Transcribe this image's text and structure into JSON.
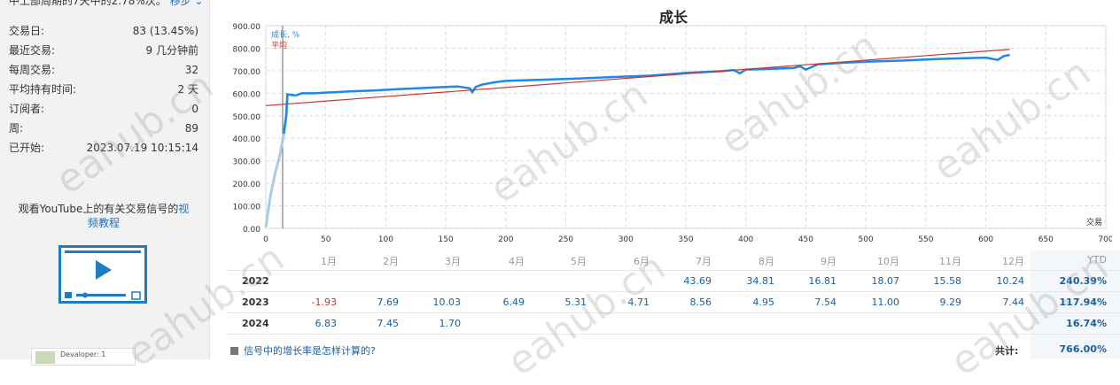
{
  "top_line": {
    "text": "中上部周期的7天中的2.78%次。",
    "link": "移步 ⌄"
  },
  "stats": [
    {
      "label": "交易日:",
      "value": "83 (13.45%)"
    },
    {
      "label": "最近交易:",
      "value": "9 几分钟前"
    },
    {
      "label": "每周交易:",
      "value": "32"
    },
    {
      "label": "平均持有时间:",
      "value": "2 天"
    },
    {
      "label": "订阅者:",
      "value": "0"
    },
    {
      "label": "周:",
      "value": "89"
    },
    {
      "label": "已开始:",
      "value": "2023.07.19 10:15:14"
    }
  ],
  "youtube": {
    "text": "观看YouTube上的有关交易信号的",
    "link_part1": "视",
    "link_part2": "频教程"
  },
  "mini_card": {
    "text": "Devaloper: 1"
  },
  "watermark": "eahub.cn",
  "chart_data": {
    "type": "line",
    "title": "成长",
    "legend": [
      {
        "name": "成长, %",
        "color": "#1e88e5"
      },
      {
        "name": "平均",
        "color": "#d32f2f"
      }
    ],
    "legend_placement": "top-left",
    "xlabel": "交易",
    "xlim": [
      0,
      700
    ],
    "ylim": [
      0,
      900
    ],
    "x_ticks": [
      0,
      50,
      100,
      150,
      200,
      250,
      300,
      350,
      400,
      450,
      500,
      550,
      600,
      650,
      700
    ],
    "y_ticks": [
      "0.00",
      "100.00",
      "200.00",
      "300.00",
      "400.00",
      "500.00",
      "600.00",
      "700.00",
      "800.00",
      "900.00"
    ],
    "grid": true,
    "vertical_marker_x": 14,
    "series": [
      {
        "name": "成长, %",
        "color": "#1e88e5",
        "x": [
          0,
          4,
          8,
          12,
          15,
          17,
          18,
          25,
          30,
          40,
          50,
          60,
          70,
          90,
          110,
          130,
          150,
          160,
          170,
          172,
          175,
          180,
          190,
          200,
          230,
          260,
          290,
          320,
          330,
          350,
          380,
          390,
          395,
          400,
          420,
          440,
          445,
          450,
          460,
          480,
          500,
          530,
          560,
          600,
          610,
          615,
          620
        ],
        "y": [
          5,
          150,
          250,
          330,
          420,
          500,
          595,
          590,
          600,
          600,
          603,
          605,
          608,
          612,
          618,
          623,
          628,
          630,
          622,
          605,
          628,
          638,
          648,
          655,
          660,
          665,
          672,
          678,
          682,
          690,
          698,
          703,
          688,
          705,
          708,
          712,
          720,
          705,
          728,
          735,
          740,
          745,
          752,
          758,
          748,
          765,
          770
        ]
      },
      {
        "name": "平均",
        "color": "#d32f2f",
        "x": [
          0,
          620
        ],
        "y": [
          545,
          795
        ]
      }
    ]
  },
  "table": {
    "months": [
      "1月",
      "2月",
      "3月",
      "4月",
      "5月",
      "6月",
      "7月",
      "8月",
      "9月",
      "10月",
      "11月",
      "12月"
    ],
    "ytd_label": "YTD",
    "rows": [
      {
        "year": "2022",
        "values": [
          "",
          "",
          "",
          "",
          "",
          "",
          "43.69",
          "34.81",
          "16.81",
          "18.07",
          "15.58",
          "10.24"
        ],
        "ytd": "240.39%"
      },
      {
        "year": "2023",
        "values": [
          "-1.93",
          "7.69",
          "10.03",
          "6.49",
          "5.31",
          "4.71",
          "8.56",
          "4.95",
          "7.54",
          "11.00",
          "9.29",
          "7.44"
        ],
        "ytd": "117.94%"
      },
      {
        "year": "2024",
        "values": [
          "6.83",
          "7.45",
          "1.70",
          "",
          "",
          "",
          "",
          "",
          "",
          "",
          "",
          ""
        ],
        "ytd": "16.74%"
      }
    ],
    "footer_question": "信号中的增长率是怎样计算的?",
    "total_label": "共计:",
    "total_value": "766.00%"
  }
}
